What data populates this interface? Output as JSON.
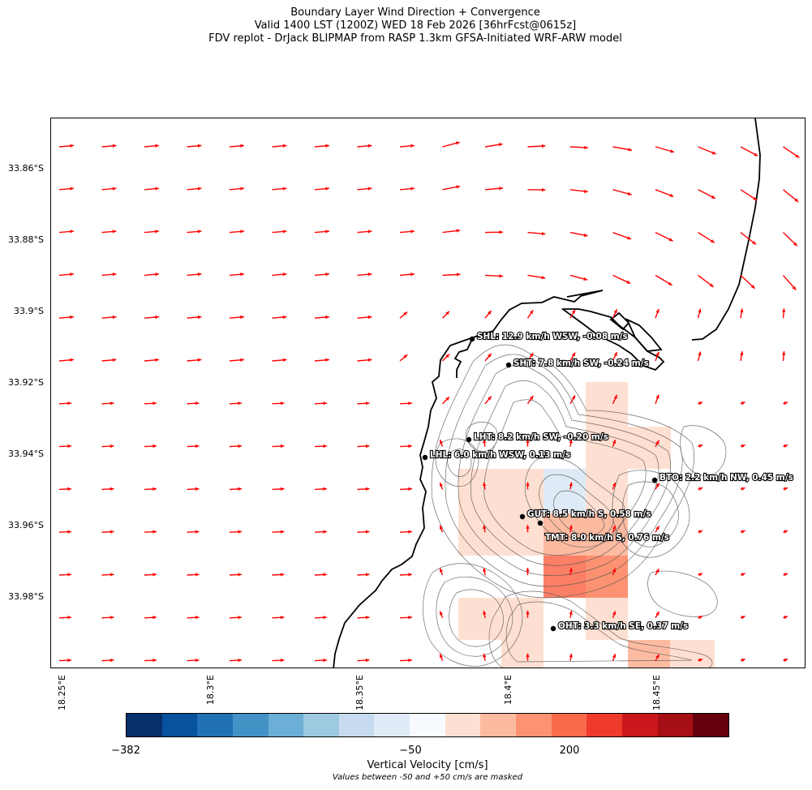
{
  "title": {
    "line1": "Boundary Layer Wind Direction + Convergence",
    "line2": "Valid 1400 LST (1200Z) WED 18 Feb 2026 [36hrFcst@0615z]",
    "line3": "FDV replot - DrJack BLIPMAP from RASP 1.3km GFSA-Initiated WRF-ARW model"
  },
  "lat_labels": [
    "33.86°S",
    "33.88°S",
    "33.9°S",
    "33.92°S",
    "33.94°S",
    "33.96°S",
    "33.98°S"
  ],
  "lon_labels": [
    "18.25°E",
    "18.3°E",
    "18.35°E",
    "18.4°E",
    "18.45°E"
  ],
  "stations": [
    {
      "code": "SHL",
      "label": "SHL: 12.9 km/h WSW, -0.08 m/s"
    },
    {
      "code": "SHT",
      "label": "SHT: 7.8 km/h SW, -0.24 m/s"
    },
    {
      "code": "LHT",
      "label": "LHT: 8.2 km/h SW, -0.20 m/s"
    },
    {
      "code": "LHL",
      "label": "LHL: 6.0 km/h WSW, 0.13 m/s"
    },
    {
      "code": "BTO",
      "label": "BTO: 2.2 km/h NW, 0.45 m/s"
    },
    {
      "code": "GUT",
      "label": "GUT: 8.5 km/h S, 0.58 m/s"
    },
    {
      "code": "TMT",
      "label": "TMT: 8.0 km/h S, 0.76 m/s"
    },
    {
      "code": "OHT",
      "label": "OHT: 3.3 km/h SE, 0.37 m/s"
    }
  ],
  "colorbar": {
    "colors": [
      "#08306b",
      "#08519c",
      "#2171b5",
      "#4292c6",
      "#6baed6",
      "#9ecae1",
      "#c6dbef",
      "#deebf7",
      "#f7fbff",
      "#fee0d2",
      "#fcbba1",
      "#fc9272",
      "#fb6a4a",
      "#ef3b2c",
      "#cb181d",
      "#a50f15",
      "#67000d"
    ],
    "tick_min": "−382",
    "tick_mid": "−50",
    "tick_200": "200",
    "label": "Vertical Velocity [cm/s]",
    "note": "Values between -50 and +50 cm/s are masked"
  },
  "colors": {
    "arrow": "#ff0000",
    "coast": "#000000",
    "contour": "#555555",
    "conv_light": "#fee0d2",
    "conv_mid": "#fcbba1",
    "conv_strong": "#fb6a4a",
    "div_light": "#deebf7"
  }
}
